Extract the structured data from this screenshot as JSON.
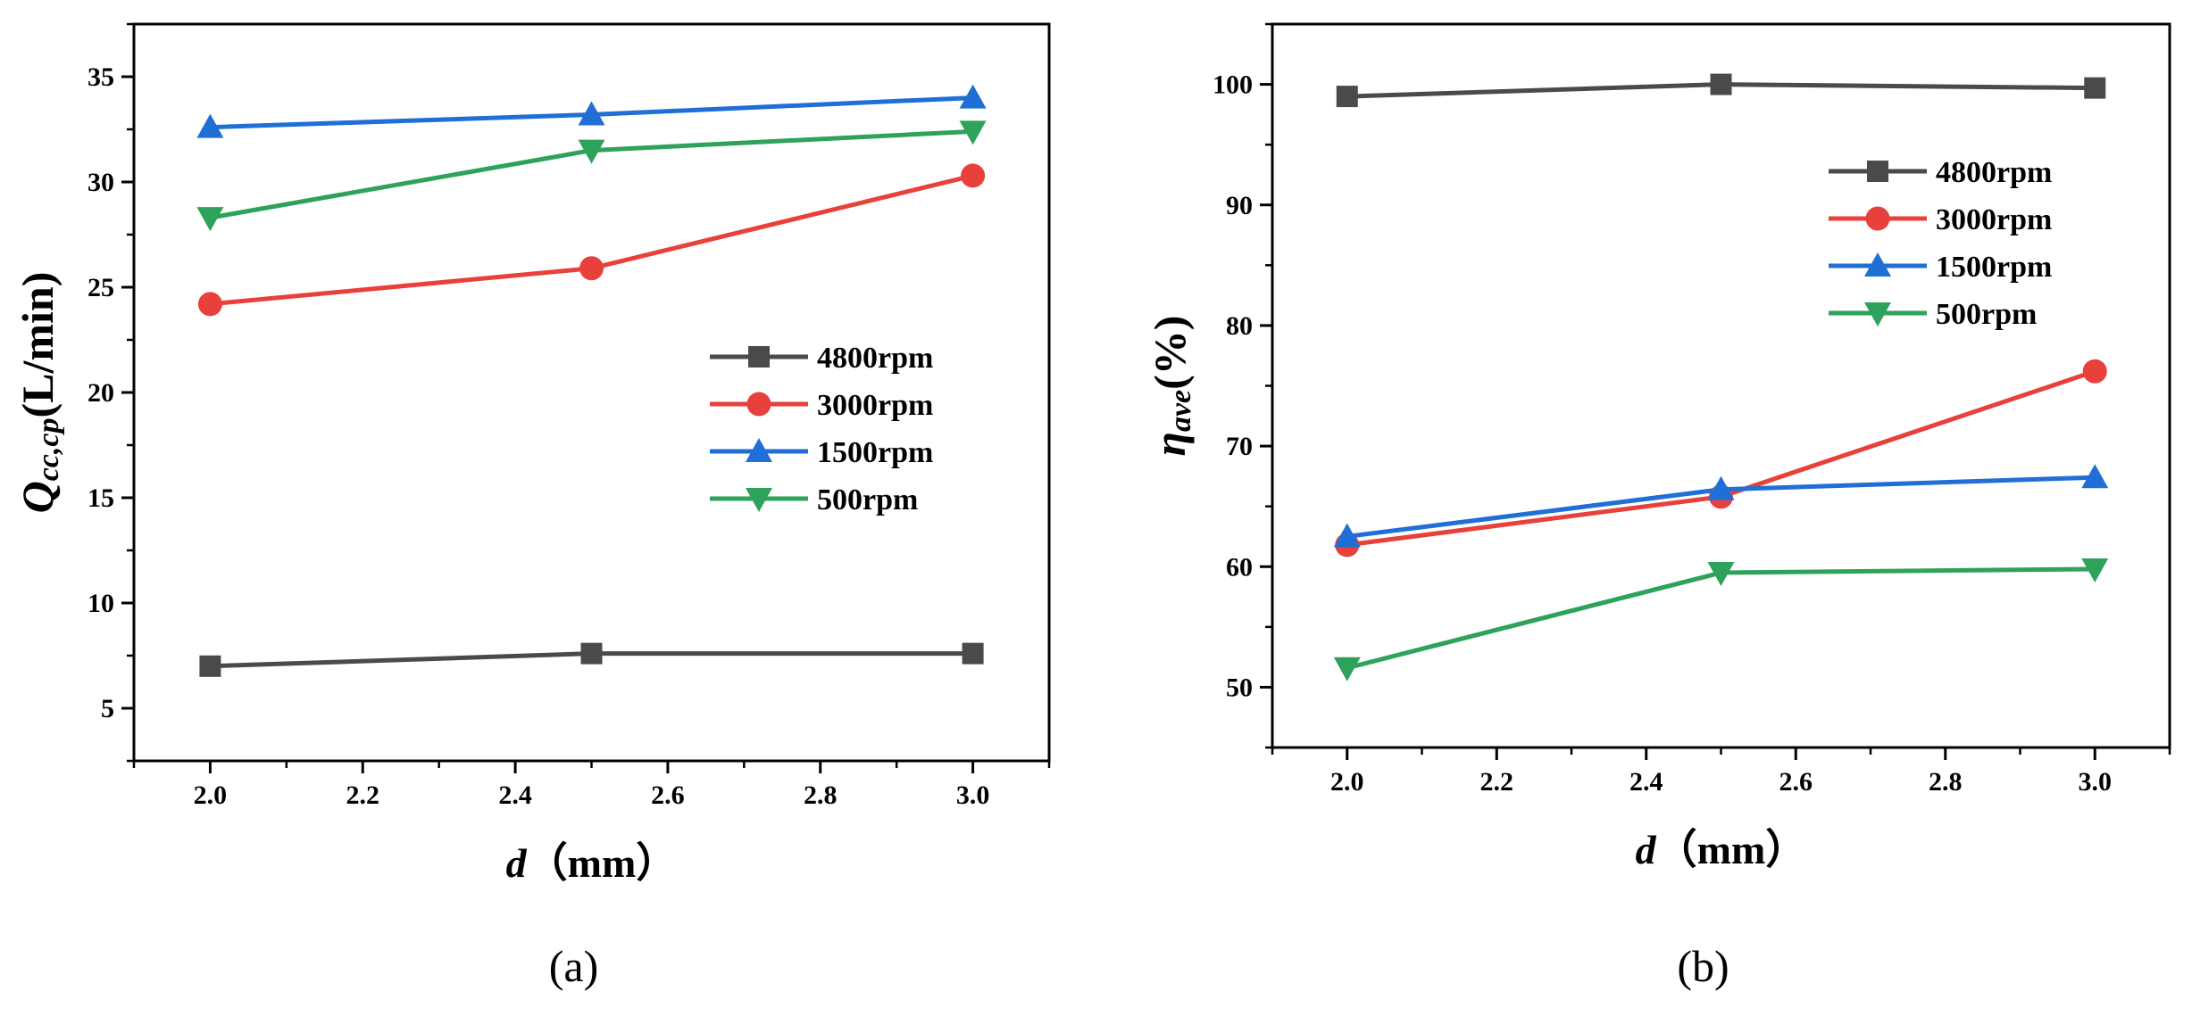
{
  "chart_data": [
    {
      "panel_label": "(a)",
      "type": "line",
      "xlabel": {
        "italic": "d",
        "rest": "（mm）"
      },
      "ylabel": {
        "main": "Q",
        "sub": "cc,cp",
        "unit": "(L/min)"
      },
      "xlim": [
        1.9,
        3.1
      ],
      "ylim": [
        2.5,
        37.5
      ],
      "x_ticks": [
        2.0,
        2.2,
        2.4,
        2.6,
        2.8,
        3.0
      ],
      "x_tick_labels": [
        "2.0",
        "2.2",
        "2.4",
        "2.6",
        "2.8",
        "3.0"
      ],
      "y_ticks": [
        5,
        10,
        15,
        20,
        25,
        30,
        35
      ],
      "y_tick_labels": [
        "5",
        "10",
        "15",
        "20",
        "25",
        "30",
        "35"
      ],
      "x": [
        2.0,
        2.5,
        3.0
      ],
      "legend_position": "center-right",
      "series": [
        {
          "name": "4800rpm",
          "color": "#4a4a4a",
          "marker": "square",
          "values": [
            7.0,
            7.6,
            7.6
          ]
        },
        {
          "name": "3000rpm",
          "color": "#e8403a",
          "marker": "circle",
          "values": [
            24.2,
            25.9,
            30.3
          ]
        },
        {
          "name": "1500rpm",
          "color": "#1f6fd6",
          "marker": "triangle-up",
          "values": [
            32.6,
            33.2,
            34.0
          ]
        },
        {
          "name": "500rpm",
          "color": "#2ea25a",
          "marker": "triangle-down",
          "values": [
            28.3,
            31.5,
            32.4
          ]
        }
      ]
    },
    {
      "panel_label": "(b)",
      "type": "line",
      "xlabel": {
        "italic": "d",
        "rest": "（mm）"
      },
      "ylabel": {
        "main": "η",
        "sub": "ave",
        "unit": "(%)"
      },
      "xlim": [
        1.9,
        3.1
      ],
      "ylim": [
        45,
        105
      ],
      "x_ticks": [
        2.0,
        2.2,
        2.4,
        2.6,
        2.8,
        3.0
      ],
      "x_tick_labels": [
        "2.0",
        "2.2",
        "2.4",
        "2.6",
        "2.8",
        "3.0"
      ],
      "y_ticks": [
        50,
        60,
        70,
        80,
        90,
        100
      ],
      "y_tick_labels": [
        "50",
        "60",
        "70",
        "80",
        "90",
        "100"
      ],
      "x": [
        2.0,
        2.5,
        3.0
      ],
      "legend_position": "top-right",
      "series": [
        {
          "name": "4800rpm",
          "color": "#4a4a4a",
          "marker": "square",
          "values": [
            99.0,
            100.0,
            99.7
          ]
        },
        {
          "name": "3000rpm",
          "color": "#e8403a",
          "marker": "circle",
          "values": [
            61.8,
            65.8,
            76.2
          ]
        },
        {
          "name": "1500rpm",
          "color": "#1f6fd6",
          "marker": "triangle-up",
          "values": [
            62.5,
            66.4,
            67.4
          ]
        },
        {
          "name": "500rpm",
          "color": "#2ea25a",
          "marker": "triangle-down",
          "values": [
            51.6,
            59.5,
            59.8
          ]
        }
      ]
    }
  ]
}
